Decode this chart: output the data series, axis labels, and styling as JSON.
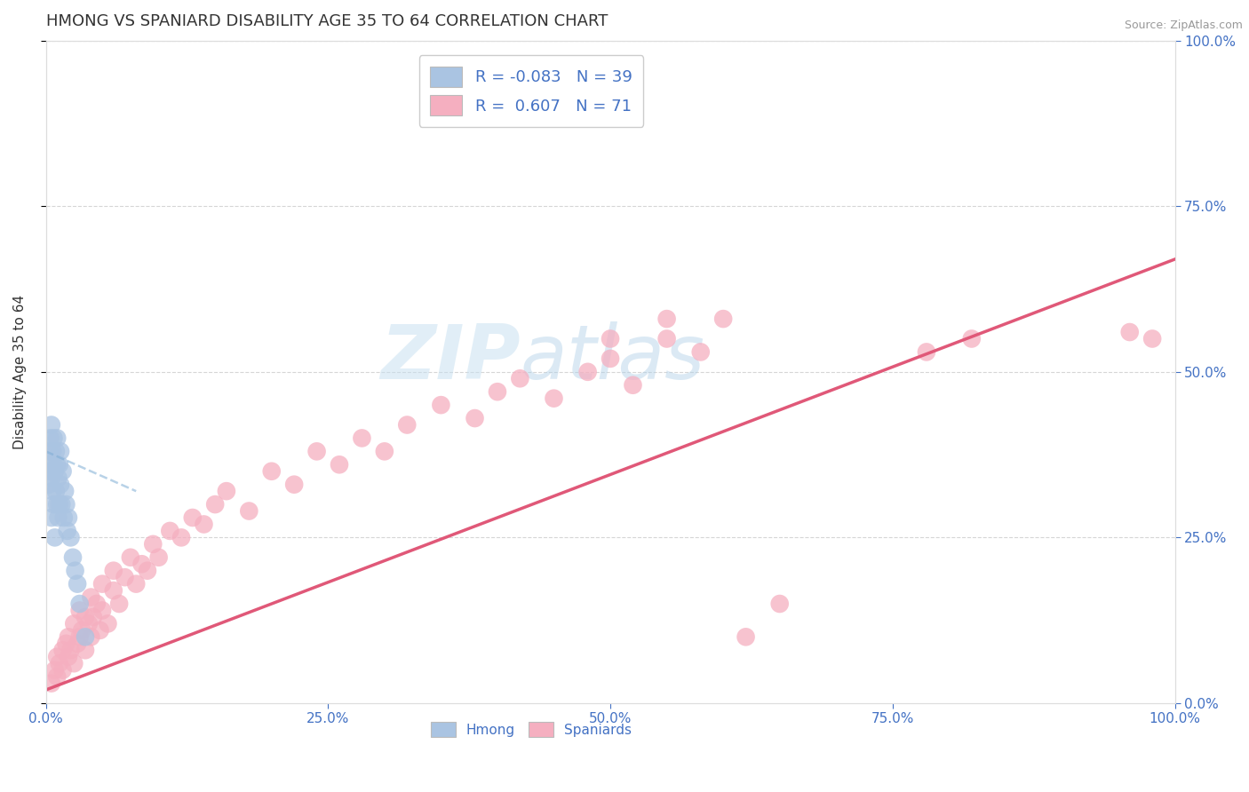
{
  "title": "HMONG VS SPANIARD DISABILITY AGE 35 TO 64 CORRELATION CHART",
  "source_text": "Source: ZipAtlas.com",
  "ylabel": "Disability Age 35 to 64",
  "xlim": [
    0.0,
    1.0
  ],
  "ylim": [
    0.0,
    1.0
  ],
  "x_tick_labels": [
    "0.0%",
    "25.0%",
    "50.0%",
    "75.0%",
    "100.0%"
  ],
  "x_tick_vals": [
    0.0,
    0.25,
    0.5,
    0.75,
    1.0
  ],
  "y_tick_labels": [
    "0.0%",
    "25.0%",
    "50.0%",
    "75.0%",
    "100.0%"
  ],
  "y_tick_vals": [
    0.0,
    0.25,
    0.5,
    0.75,
    1.0
  ],
  "hmong_color": "#aac4e2",
  "spaniard_color": "#f5afc0",
  "hmong_line_color": "#7fadd4",
  "spaniard_line_color": "#e05878",
  "hmong_R": -0.083,
  "hmong_N": 39,
  "spaniard_R": 0.607,
  "spaniard_N": 71,
  "watermark_zip": "ZIP",
  "watermark_atlas": "atlas",
  "bottom_legend_hmong": "Hmong",
  "bottom_legend_spaniard": "Spaniards",
  "title_fontsize": 13,
  "tick_fontsize": 11,
  "ylabel_fontsize": 11,
  "background_color": "#ffffff",
  "grid_color": "#cccccc",
  "title_color": "#333333",
  "tick_color": "#4472c4",
  "source_color": "#999999",
  "spaniard_x": [
    0.005,
    0.008,
    0.01,
    0.01,
    0.012,
    0.015,
    0.015,
    0.018,
    0.02,
    0.02,
    0.022,
    0.025,
    0.025,
    0.028,
    0.03,
    0.03,
    0.032,
    0.035,
    0.035,
    0.038,
    0.04,
    0.04,
    0.042,
    0.045,
    0.048,
    0.05,
    0.05,
    0.055,
    0.06,
    0.06,
    0.065,
    0.07,
    0.075,
    0.08,
    0.085,
    0.09,
    0.095,
    0.1,
    0.11,
    0.12,
    0.13,
    0.14,
    0.15,
    0.16,
    0.18,
    0.2,
    0.22,
    0.24,
    0.26,
    0.28,
    0.3,
    0.32,
    0.35,
    0.38,
    0.4,
    0.42,
    0.45,
    0.48,
    0.5,
    0.52,
    0.55,
    0.58,
    0.6,
    0.62,
    0.65,
    0.5,
    0.55,
    0.78,
    0.82,
    0.96,
    0.98
  ],
  "spaniard_y": [
    0.03,
    0.05,
    0.04,
    0.07,
    0.06,
    0.08,
    0.05,
    0.09,
    0.07,
    0.1,
    0.08,
    0.06,
    0.12,
    0.09,
    0.1,
    0.14,
    0.11,
    0.08,
    0.13,
    0.12,
    0.1,
    0.16,
    0.13,
    0.15,
    0.11,
    0.14,
    0.18,
    0.12,
    0.17,
    0.2,
    0.15,
    0.19,
    0.22,
    0.18,
    0.21,
    0.2,
    0.24,
    0.22,
    0.26,
    0.25,
    0.28,
    0.27,
    0.3,
    0.32,
    0.29,
    0.35,
    0.33,
    0.38,
    0.36,
    0.4,
    0.38,
    0.42,
    0.45,
    0.43,
    0.47,
    0.49,
    0.46,
    0.5,
    0.52,
    0.48,
    0.55,
    0.53,
    0.58,
    0.1,
    0.15,
    0.55,
    0.58,
    0.53,
    0.55,
    0.56,
    0.55
  ],
  "hmong_x": [
    0.002,
    0.003,
    0.003,
    0.004,
    0.004,
    0.005,
    0.005,
    0.005,
    0.006,
    0.006,
    0.007,
    0.007,
    0.007,
    0.008,
    0.008,
    0.009,
    0.009,
    0.01,
    0.01,
    0.01,
    0.011,
    0.011,
    0.012,
    0.012,
    0.013,
    0.013,
    0.014,
    0.015,
    0.016,
    0.017,
    0.018,
    0.019,
    0.02,
    0.022,
    0.024,
    0.026,
    0.028,
    0.03,
    0.035
  ],
  "hmong_y": [
    0.35,
    0.38,
    0.33,
    0.4,
    0.36,
    0.42,
    0.34,
    0.28,
    0.38,
    0.32,
    0.36,
    0.3,
    0.4,
    0.35,
    0.25,
    0.38,
    0.32,
    0.36,
    0.3,
    0.4,
    0.34,
    0.28,
    0.36,
    0.3,
    0.38,
    0.33,
    0.3,
    0.35,
    0.28,
    0.32,
    0.3,
    0.26,
    0.28,
    0.25,
    0.22,
    0.2,
    0.18,
    0.15,
    0.1
  ],
  "spaniard_line_x": [
    0.0,
    1.0
  ],
  "spaniard_line_y": [
    0.02,
    0.67
  ],
  "hmong_line_x": [
    0.0,
    0.08
  ],
  "hmong_line_y": [
    0.38,
    0.32
  ]
}
